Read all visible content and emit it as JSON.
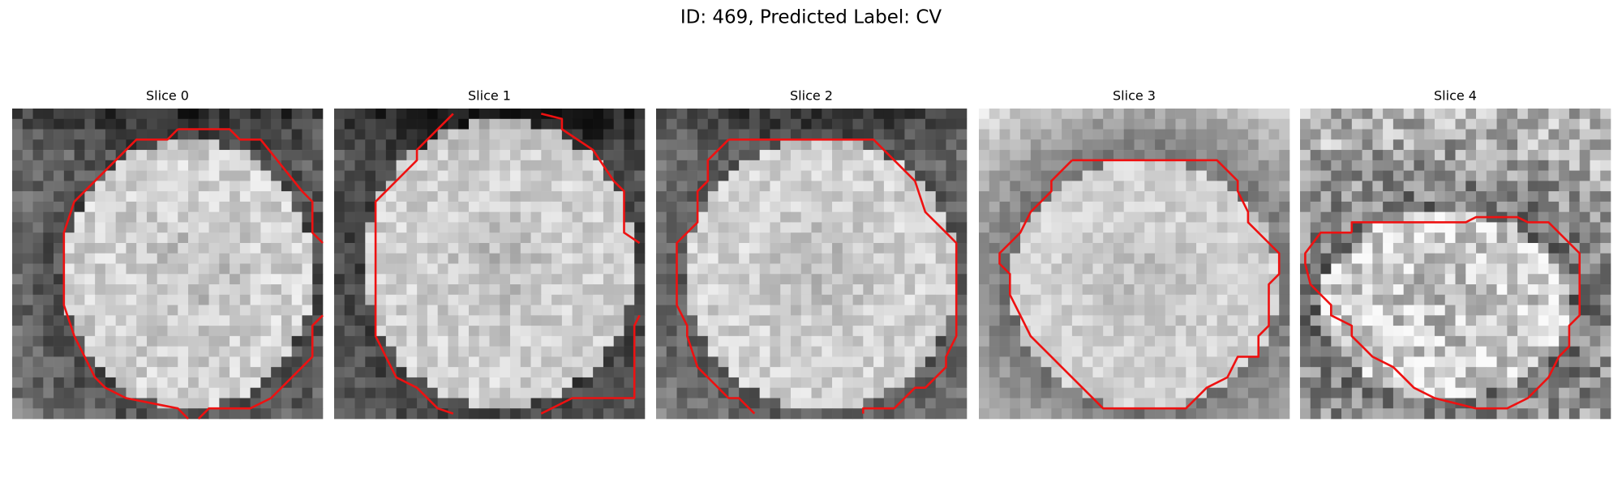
{
  "title": "ID: 469, Predicted Label: CV",
  "panels": [
    {
      "title": "Slice 0"
    },
    {
      "title": "Slice 1"
    },
    {
      "title": "Slice 2"
    },
    {
      "title": "Slice 3"
    },
    {
      "title": "Slice 4"
    }
  ]
}
